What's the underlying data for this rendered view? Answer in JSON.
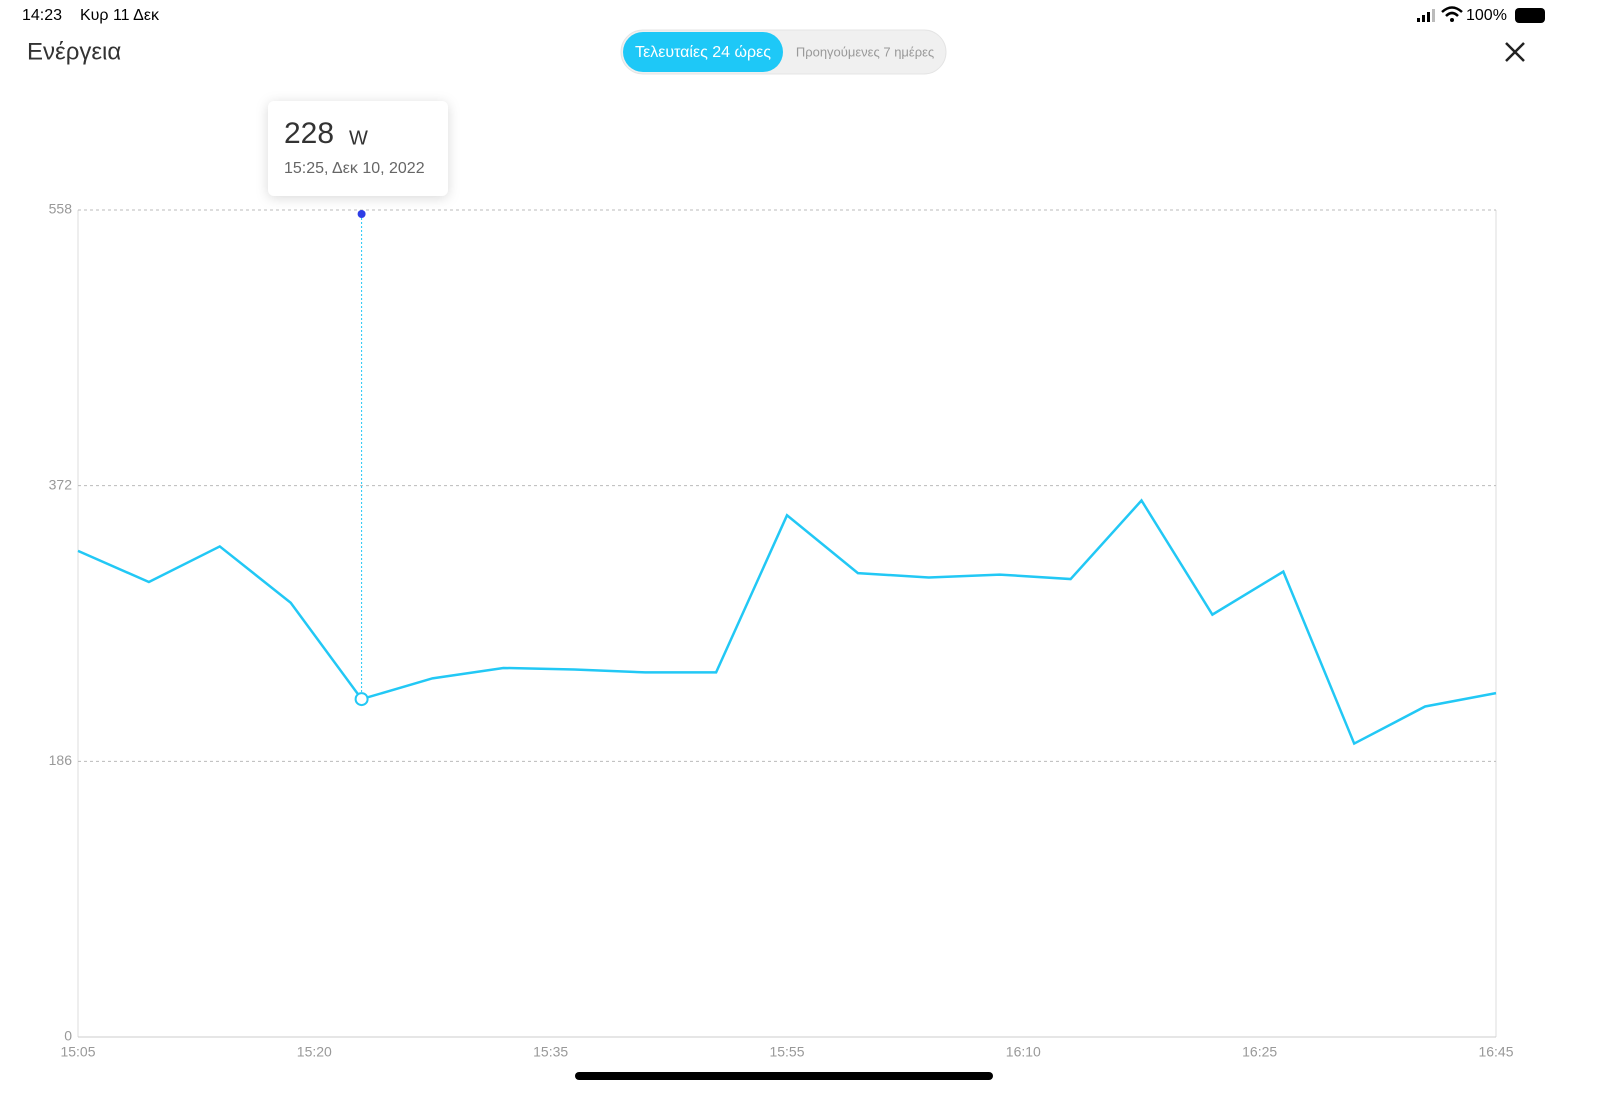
{
  "status_bar": {
    "time": "14:23",
    "date": "Κυρ 11 Δεκ",
    "battery": "100%"
  },
  "header": {
    "title": "Ενέργεια"
  },
  "tabs": [
    "Τελευταίες 24 ώρες",
    "Προηγούμενες 7 ημέρες"
  ],
  "tooltip": {
    "unit": "W",
    "date": "15:25, Δεκ 10, 2022"
  },
  "chart_data": {
    "type": "line",
    "color": "#22c8f5",
    "grid": true,
    "values": [
      328,
      307,
      331,
      293,
      228,
      242,
      249,
      248,
      246,
      246,
      352,
      313,
      310,
      312,
      309,
      362,
      285,
      314,
      198,
      223,
      232
    ],
    "xticks": [
      "15:05",
      "15:20",
      "15:35",
      "15:55",
      "16:10",
      "16:25",
      "16:45"
    ],
    "ylim": [
      0,
      558
    ],
    "yticks": [
      0,
      186,
      372,
      558
    ]
  }
}
